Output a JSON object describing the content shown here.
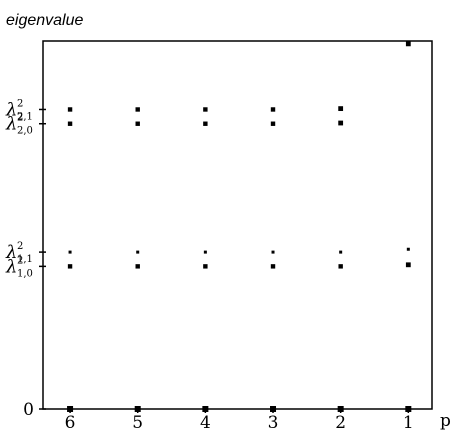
{
  "chart_data": {
    "type": "scatter",
    "title": "",
    "ylabel": "eigenvalue",
    "xlabel": "p",
    "x_ticks": [
      {
        "value": 6,
        "label": "6"
      },
      {
        "value": 5,
        "label": "5"
      },
      {
        "value": 4,
        "label": "4"
      },
      {
        "value": 3,
        "label": "3"
      },
      {
        "value": 2,
        "label": "2"
      },
      {
        "value": 1,
        "label": "1"
      }
    ],
    "x_reversed": true,
    "xlim": [
      6.4,
      0.65
    ],
    "y_ticks": [
      {
        "value": 0,
        "symbol": "0",
        "sup": "",
        "sub": ""
      },
      {
        "value": 1.0,
        "symbol": "λ",
        "sup": "2",
        "sub": "1,0"
      },
      {
        "value": 1.1,
        "symbol": "λ",
        "sup": "2",
        "sub": "1,1"
      },
      {
        "value": 2.0,
        "symbol": "λ",
        "sup": "2",
        "sub": "2,0"
      },
      {
        "value": 2.1,
        "symbol": "λ",
        "sup": "2",
        "sub": "2,1"
      }
    ],
    "ylim": [
      0,
      2.58
    ],
    "grid": false,
    "points": [
      {
        "x": 6,
        "y": 0,
        "size": 3
      },
      {
        "x": 5,
        "y": 0,
        "size": 3
      },
      {
        "x": 4,
        "y": 0,
        "size": 3
      },
      {
        "x": 3,
        "y": 0,
        "size": 3
      },
      {
        "x": 2,
        "y": 0,
        "size": 3
      },
      {
        "x": 1,
        "y": 0,
        "size": 3
      },
      {
        "x": 6,
        "y": 1.0,
        "size": 2.2
      },
      {
        "x": 5,
        "y": 1.0,
        "size": 2.2
      },
      {
        "x": 4,
        "y": 1.0,
        "size": 2.2
      },
      {
        "x": 3,
        "y": 1.0,
        "size": 2.2
      },
      {
        "x": 2,
        "y": 1.0,
        "size": 2.2
      },
      {
        "x": 1,
        "y": 1.011,
        "size": 2.4
      },
      {
        "x": 6,
        "y": 1.1,
        "size": 1.5
      },
      {
        "x": 5,
        "y": 1.1,
        "size": 1.5
      },
      {
        "x": 4,
        "y": 1.1,
        "size": 1.5
      },
      {
        "x": 3,
        "y": 1.1,
        "size": 1.5
      },
      {
        "x": 2,
        "y": 1.1,
        "size": 1.5
      },
      {
        "x": 1,
        "y": 1.12,
        "size": 1.5
      },
      {
        "x": 6,
        "y": 2.0,
        "size": 2.2
      },
      {
        "x": 5,
        "y": 2.0,
        "size": 2.2
      },
      {
        "x": 4,
        "y": 2.0,
        "size": 2.2
      },
      {
        "x": 3,
        "y": 2.0,
        "size": 2.2
      },
      {
        "x": 2,
        "y": 2.005,
        "size": 2.4
      },
      {
        "x": 6,
        "y": 2.1,
        "size": 2.2
      },
      {
        "x": 5,
        "y": 2.1,
        "size": 2.2
      },
      {
        "x": 4,
        "y": 2.1,
        "size": 2.2
      },
      {
        "x": 3,
        "y": 2.1,
        "size": 2.2
      },
      {
        "x": 2,
        "y": 2.106,
        "size": 2.4
      },
      {
        "x": 1,
        "y": 2.56,
        "size": 2.4
      }
    ],
    "colors": {
      "axis": "#000000",
      "point": "#000000",
      "background": "#ffffff"
    }
  }
}
